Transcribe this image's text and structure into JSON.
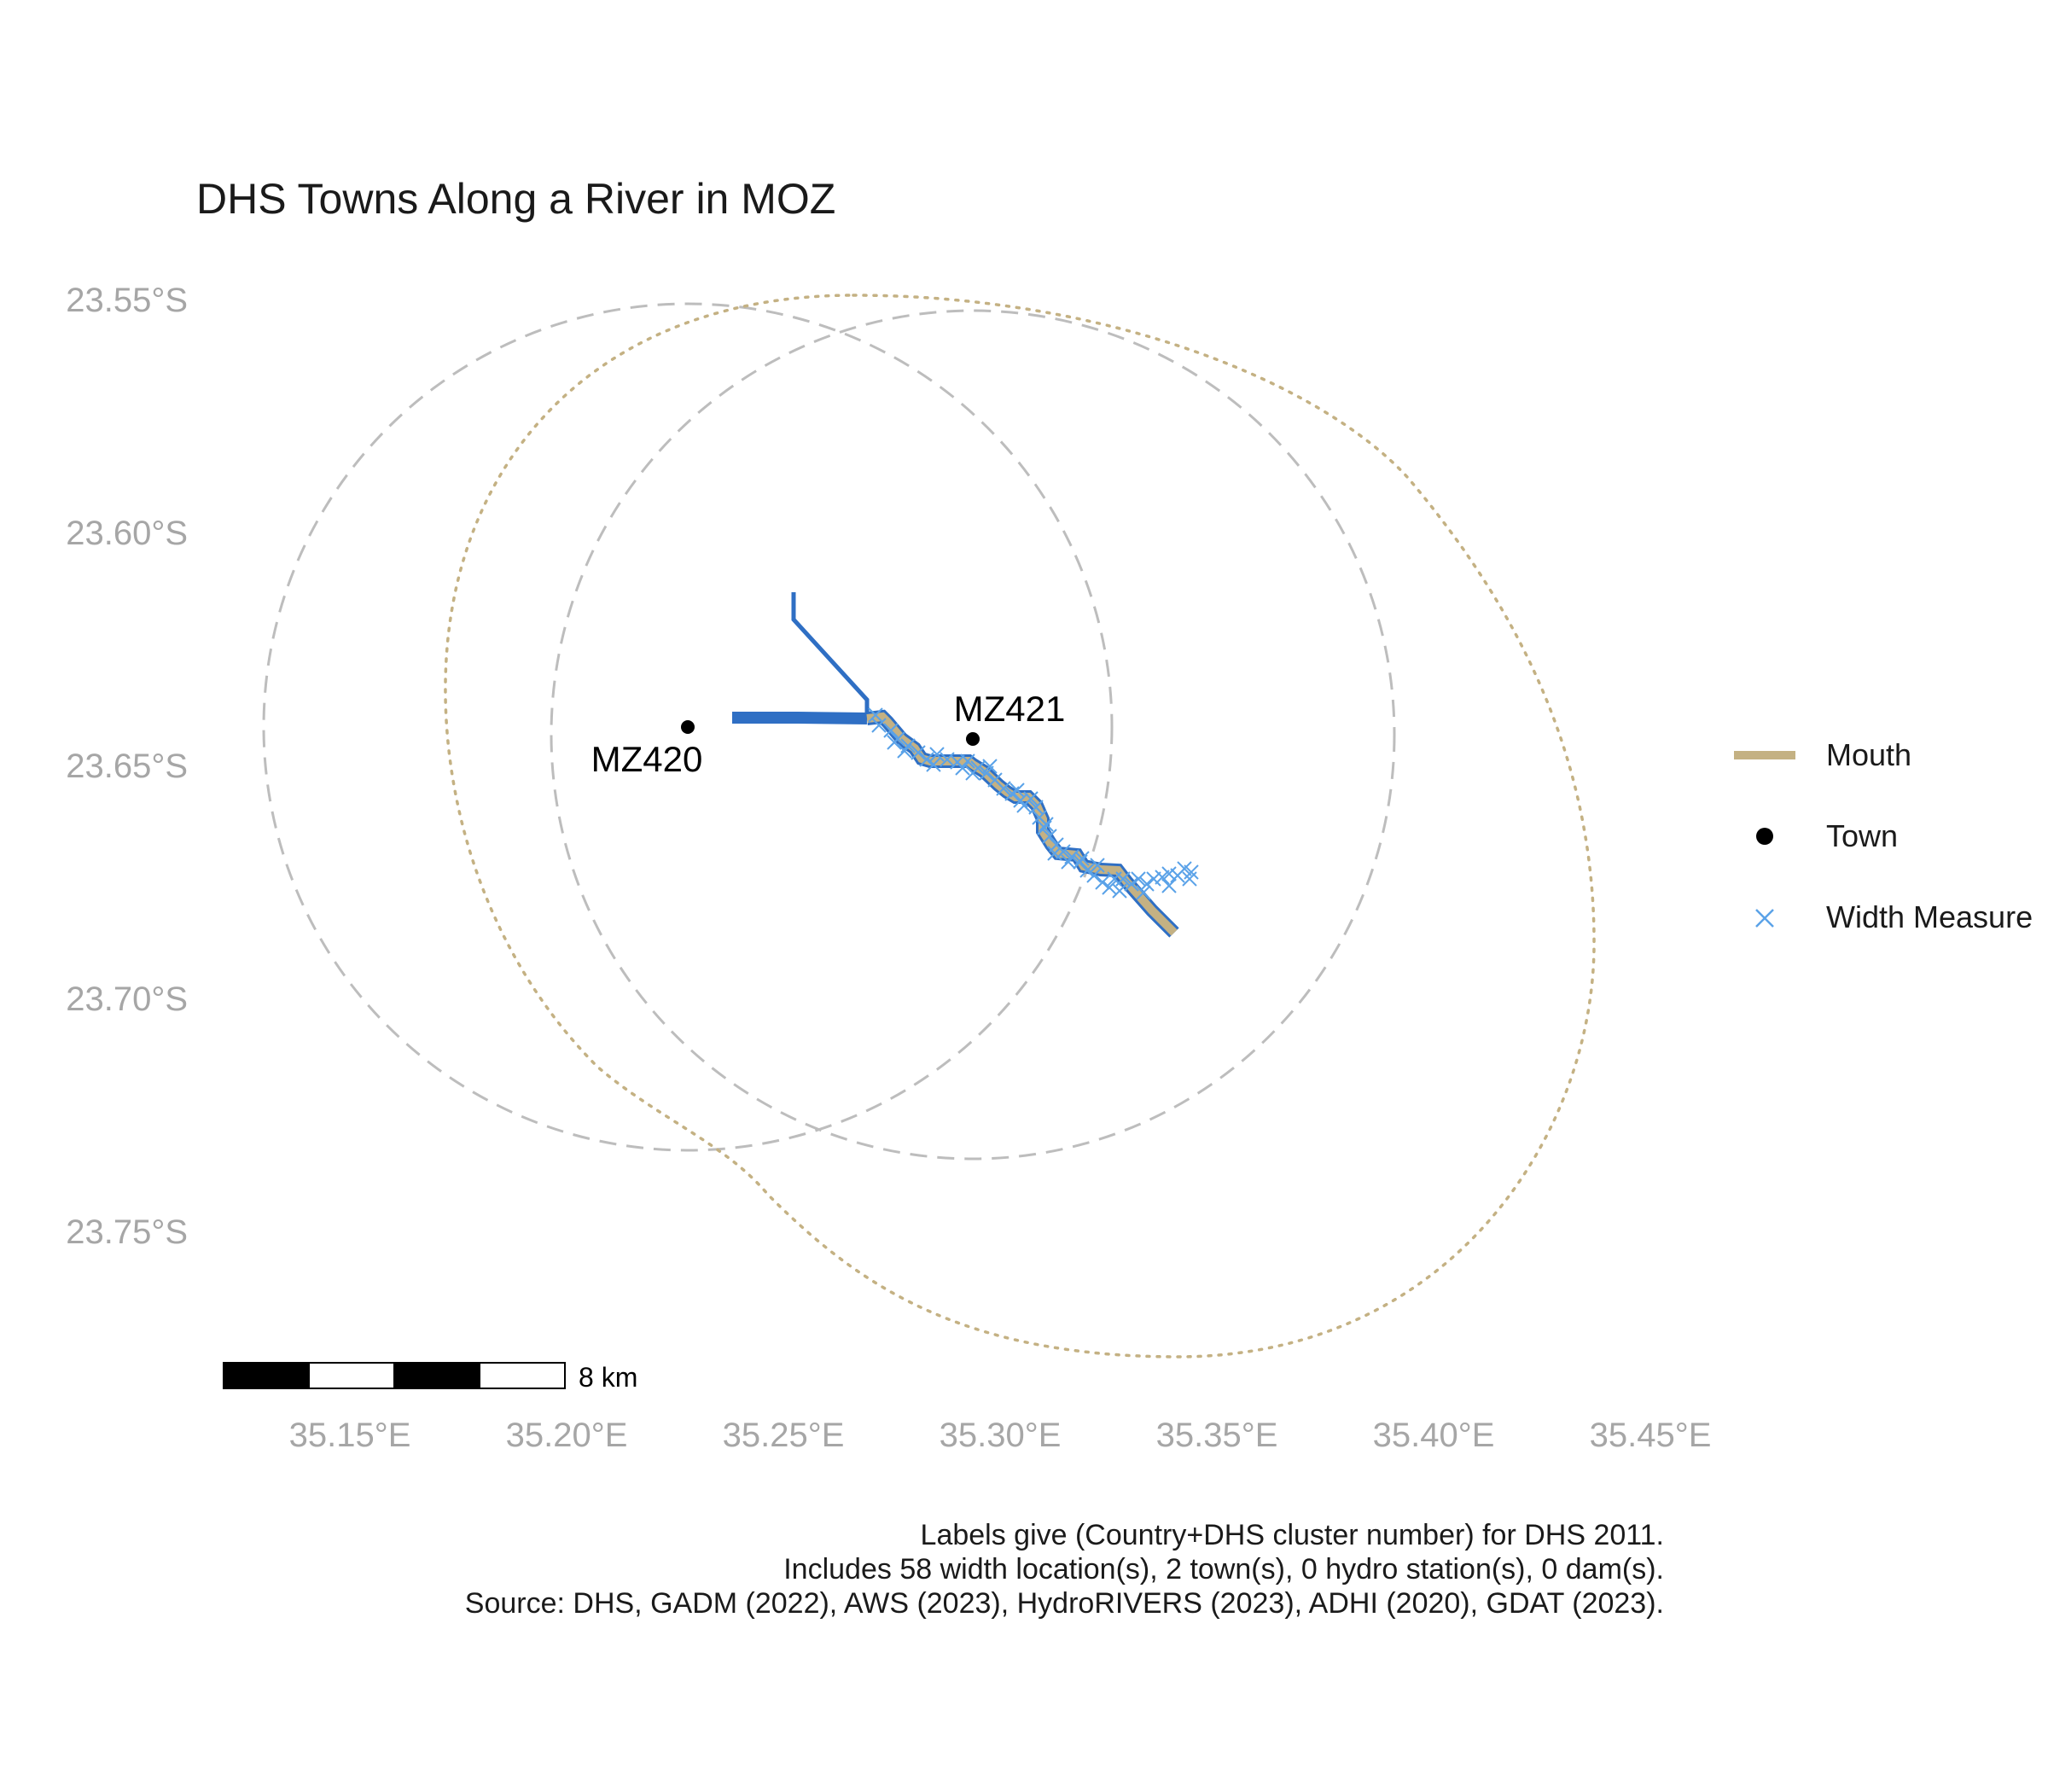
{
  "title": "DHS Towns Along a River in MOZ",
  "axes": {
    "y_ticks": [
      "23.55°S",
      "23.60°S",
      "23.65°S",
      "23.70°S",
      "23.75°S"
    ],
    "x_ticks": [
      "35.15°E",
      "35.20°E",
      "35.25°E",
      "35.30°E",
      "35.35°E",
      "35.40°E",
      "35.45°E"
    ],
    "tick_color": "#a6a6a6"
  },
  "legend": {
    "items": [
      {
        "label": "Mouth",
        "symbol": "line",
        "color": "#c4b183"
      },
      {
        "label": "Town",
        "symbol": "point",
        "color": "#000000"
      },
      {
        "label": "Width Measure",
        "symbol": "cross",
        "color": "#5aa2e8"
      }
    ]
  },
  "towns": [
    {
      "label": "MZ420",
      "lon": 35.2275,
      "lat": -23.6412
    },
    {
      "label": "MZ421",
      "lon": 35.293,
      "lat": -23.644
    }
  ],
  "scale_bar": {
    "label": "8 km"
  },
  "colors": {
    "river": "#2f6fc4",
    "mouth": "#c4b183",
    "width_measure": "#5aa2e8",
    "buffer_circle": "#bdbdbd",
    "mouth_circle": "#c4b183"
  },
  "caption": [
    "Labels give (Country+DHS cluster number) for DHS 2011.",
    "Includes 58 width location(s), 2 town(s), 0 hydro station(s), 0 dam(s).",
    "Source: DHS, GADM (2022), AWS (2023), HydroRIVERS (2023), ADHI (2020), GDAT (2023)."
  ]
}
